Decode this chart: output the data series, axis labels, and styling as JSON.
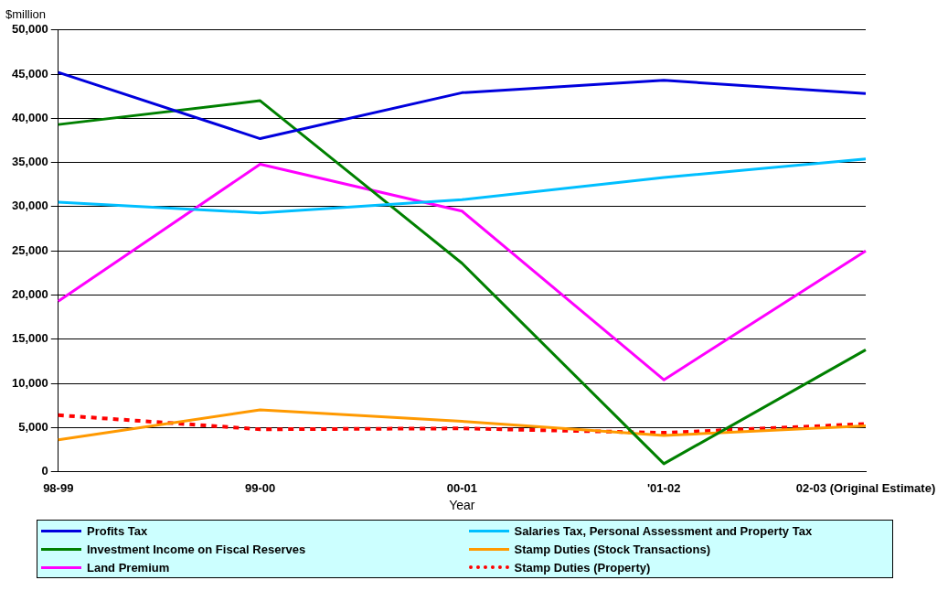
{
  "chart_data": {
    "type": "line",
    "ylabel": "$million",
    "xlabel": "Year",
    "categories": [
      "98-99",
      "99-00",
      "00-01",
      "'01-02",
      "02-03 (Original Estimate)"
    ],
    "ylim": [
      0,
      50000
    ],
    "yticks": [
      0,
      {
        "value": 5000,
        "label": "5,000"
      },
      {
        "value": 10000,
        "label": "10,000"
      },
      {
        "value": 15000,
        "label": "15,000"
      },
      {
        "value": 20000,
        "label": "20,000"
      },
      {
        "value": 25000,
        "label": "25,000"
      },
      {
        "value": 30000,
        "label": "30,000"
      },
      {
        "value": 35000,
        "label": "35,000"
      },
      {
        "value": 40000,
        "label": "40,000"
      },
      {
        "value": 45000,
        "label": "45,000"
      },
      {
        "value": 50000,
        "label": "50,000"
      }
    ],
    "grid": "y",
    "legend": "bottom",
    "marker": "none",
    "line_style": "solid",
    "series": [
      {
        "name": "Profits Tax",
        "color": "#0000dd",
        "values": [
          45200,
          37700,
          42900,
          44300,
          42800
        ]
      },
      {
        "name": "Salaries Tax, Personal Assessment and Property Tax",
        "color": "#00bfff",
        "values": [
          30500,
          29300,
          30800,
          33300,
          35400
        ]
      },
      {
        "name": "Investment Income on Fiscal Reserves",
        "color": "#008000",
        "values": [
          39300,
          42000,
          23600,
          900,
          13800
        ]
      },
      {
        "name": "Stamp Duties (Stock Transactions)",
        "color": "#ff9900",
        "values": [
          3600,
          7000,
          5700,
          4100,
          5200
        ]
      },
      {
        "name": "Land Premium",
        "color": "#ff00ff",
        "values": [
          19300,
          34800,
          29500,
          10400,
          25000
        ]
      },
      {
        "name": "Stamp Duties (Property)",
        "color": "#ff0000",
        "line_style": "dotted",
        "values": [
          6400,
          4800,
          4900,
          4400,
          5400
        ]
      }
    ]
  }
}
